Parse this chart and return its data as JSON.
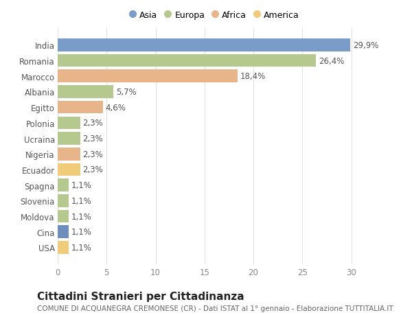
{
  "countries": [
    "India",
    "Romania",
    "Marocco",
    "Albania",
    "Egitto",
    "Polonia",
    "Ucraina",
    "Nigeria",
    "Ecuador",
    "Spagna",
    "Slovenia",
    "Moldova",
    "Cina",
    "USA"
  ],
  "values": [
    29.9,
    26.4,
    18.4,
    5.7,
    4.6,
    2.3,
    2.3,
    2.3,
    2.3,
    1.1,
    1.1,
    1.1,
    1.1,
    1.1
  ],
  "labels": [
    "29,9%",
    "26,4%",
    "18,4%",
    "5,7%",
    "4,6%",
    "2,3%",
    "2,3%",
    "2,3%",
    "2,3%",
    "1,1%",
    "1,1%",
    "1,1%",
    "1,1%",
    "1,1%"
  ],
  "colors": [
    "#7a9cc9",
    "#b5c98e",
    "#e8b48a",
    "#b5c98e",
    "#e8b48a",
    "#b5c98e",
    "#b5c98e",
    "#e8b48a",
    "#f0cc7a",
    "#b5c98e",
    "#b5c98e",
    "#b5c98e",
    "#6e8fbd",
    "#f0cc7a"
  ],
  "legend_labels": [
    "Asia",
    "Europa",
    "Africa",
    "America"
  ],
  "legend_colors": [
    "#7a9cc9",
    "#b5c98e",
    "#e8b48a",
    "#f0cc7a"
  ],
  "xlim": [
    0,
    32
  ],
  "xticks": [
    0,
    5,
    10,
    15,
    20,
    25,
    30
  ],
  "title": "Cittadini Stranieri per Cittadinanza",
  "subtitle": "COMUNE DI ACQUANEGRA CREMONESE (CR) - Dati ISTAT al 1° gennaio - Elaborazione TUTTITALIA.IT",
  "background_color": "#ffffff",
  "bar_height": 0.82,
  "label_fontsize": 8.5,
  "ytick_fontsize": 8.5,
  "xtick_fontsize": 8.5,
  "title_fontsize": 11,
  "subtitle_fontsize": 7.5,
  "legend_fontsize": 9
}
